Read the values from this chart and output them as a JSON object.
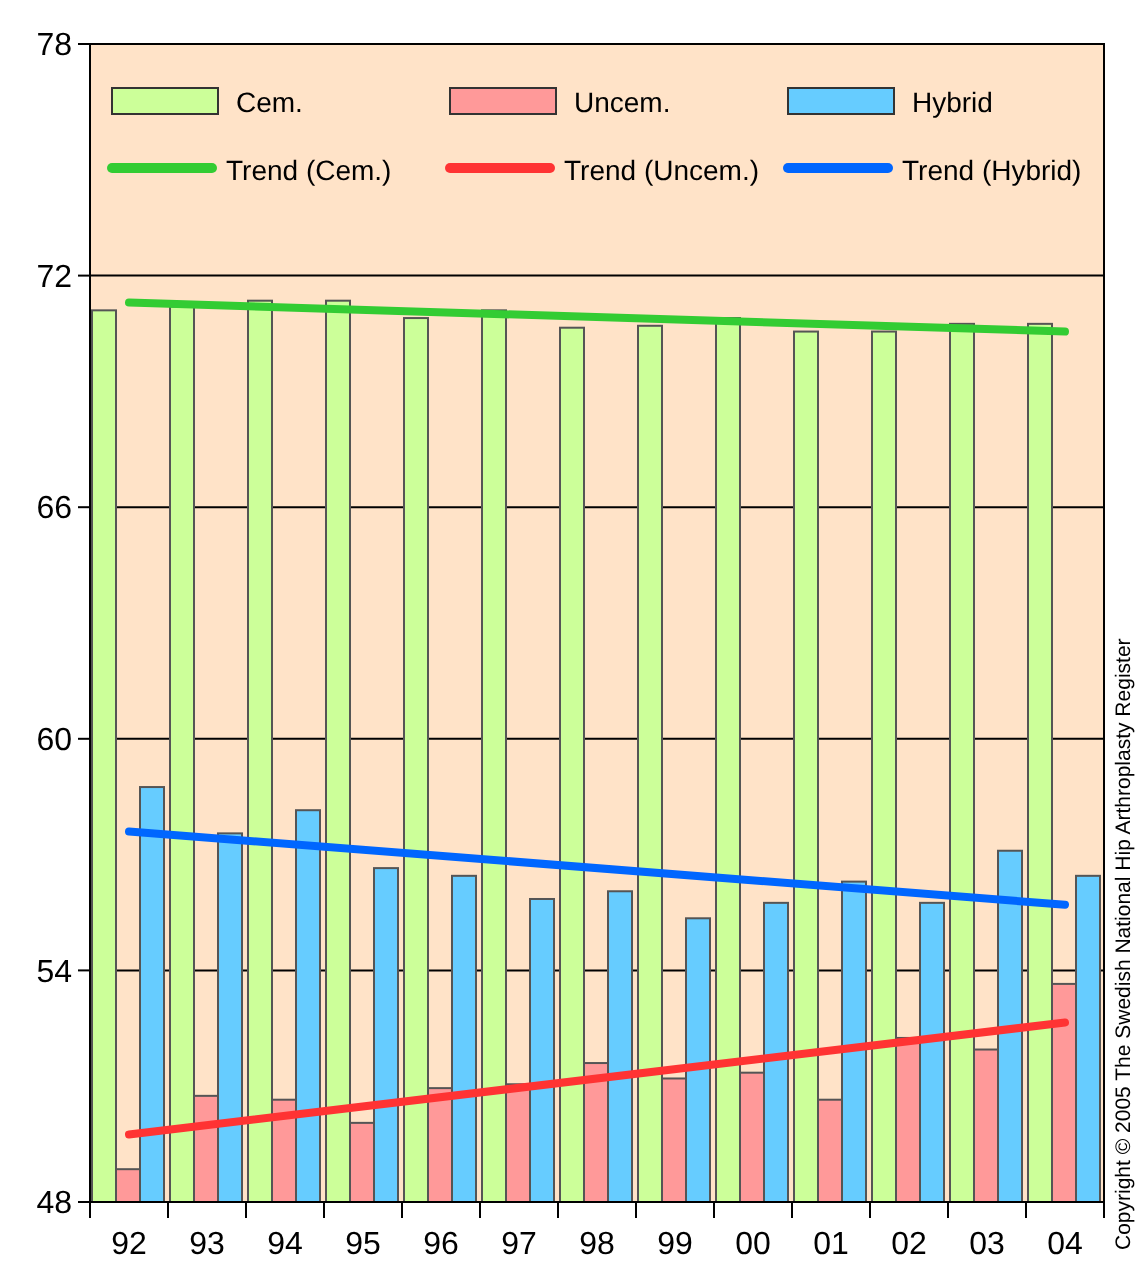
{
  "chart_data": {
    "type": "bar",
    "categories": [
      "92",
      "93",
      "94",
      "95",
      "96",
      "97",
      "98",
      "99",
      "00",
      "01",
      "02",
      "03",
      "04"
    ],
    "series": [
      {
        "name": "Cem.",
        "color": "#ccff99",
        "values": [
          71.1,
          71.2,
          71.35,
          71.35,
          70.9,
          71.1,
          70.65,
          70.7,
          70.9,
          70.55,
          70.55,
          70.75,
          70.75
        ]
      },
      {
        "name": "Uncem.",
        "color": "#ff9999",
        "values": [
          48.85,
          50.75,
          50.65,
          50.05,
          50.95,
          51.05,
          51.6,
          51.2,
          51.35,
          50.65,
          52.25,
          51.95,
          53.65
        ]
      },
      {
        "name": "Hybrid",
        "color": "#66ccff",
        "values": [
          58.75,
          57.55,
          58.15,
          56.65,
          56.45,
          55.85,
          56.05,
          55.35,
          55.75,
          56.3,
          55.75,
          57.1,
          56.45
        ]
      },
      {
        "name": "Trend (Cem.)",
        "type": "line",
        "color": "#33cc33",
        "x": [
          "92",
          "04"
        ],
        "values": [
          71.3,
          70.55
        ]
      },
      {
        "name": "Trend (Uncem.)",
        "type": "line",
        "color": "#ff3333",
        "x": [
          "92",
          "04"
        ],
        "values": [
          49.75,
          52.65
        ]
      },
      {
        "name": "Trend (Hybrid)",
        "type": "line",
        "color": "#0066ff",
        "x": [
          "92",
          "04"
        ],
        "values": [
          57.6,
          55.7
        ]
      }
    ],
    "ylim": [
      48,
      78
    ],
    "yticks": [
      48,
      54,
      60,
      66,
      72,
      78
    ],
    "grid": "y",
    "legend": "top",
    "line_style": "solid",
    "marker": "none",
    "annotations": [
      "Copyright © 2005 The Swedish National Hip Arthroplasty Register"
    ]
  }
}
